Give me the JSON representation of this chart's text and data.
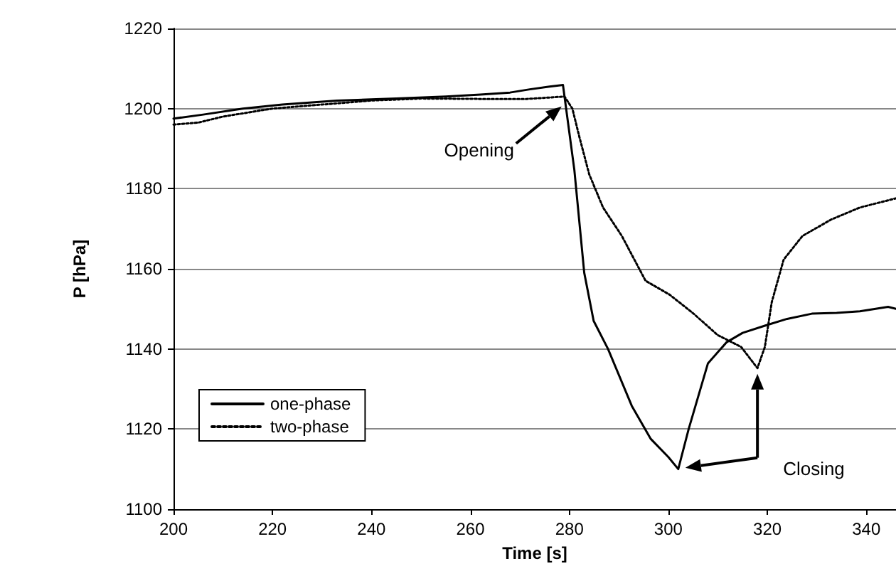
{
  "chart_data": {
    "type": "line",
    "xlabel": "Time [s]",
    "ylabel": "P [hPa]",
    "xlim": [
      200,
      346
    ],
    "xticks": [
      200,
      220,
      240,
      260,
      280,
      300,
      320,
      340
    ],
    "ylim": [
      1100,
      1220
    ],
    "yticks": [
      1100,
      1120,
      1140,
      1160,
      1180,
      1200,
      1220
    ],
    "grid": "y",
    "legend": "bottom left",
    "marker": "none",
    "series": [
      {
        "name": "one-phase",
        "color": "#000000",
        "line_style": "solid",
        "x": [
          200,
          206,
          214,
          222,
          233,
          245,
          255,
          262,
          268,
          272,
          276,
          278.7,
          281,
          283,
          284.9,
          287.8,
          292.6,
          296.4,
          300,
          302,
          304.1,
          308,
          311.8,
          315,
          319.5,
          324,
          329,
          334,
          338.7,
          344.4,
          346
        ],
        "values": [
          1197.5,
          1198.5,
          1200,
          1201,
          1202,
          1202.5,
          1203,
          1203.5,
          1204,
          1204.8,
          1205.5,
          1205.9,
          1184.7,
          1159,
          1147,
          1140,
          1125.8,
          1117.6,
          1113,
          1110,
          1120,
          1136.4,
          1141.7,
          1144,
          1145.8,
          1147.5,
          1148.8,
          1149,
          1149.4,
          1150.5,
          1150
        ]
      },
      {
        "name": "two-phase",
        "color": "#000000",
        "line_style": "dotted",
        "x": [
          200,
          205,
          210,
          215,
          220,
          230,
          240,
          250,
          261.9,
          271.4,
          279,
          280.6,
          282,
          284,
          286.8,
          290.6,
          295.4,
          300.3,
          305.1,
          309.9,
          314.7,
          318,
          319.5,
          320.9,
          323.3,
          327.1,
          332.9,
          338.7,
          346
        ],
        "values": [
          1196,
          1196.5,
          1198,
          1199,
          1200,
          1201,
          1202,
          1202.5,
          1202.4,
          1202.4,
          1203,
          1200,
          1193,
          1183.6,
          1175.3,
          1168.2,
          1157,
          1153.5,
          1148.8,
          1143.5,
          1140.5,
          1135.2,
          1140.5,
          1151.7,
          1162.3,
          1168.2,
          1172.3,
          1175.3,
          1177.6
        ]
      }
    ],
    "annotations": [
      "Opening",
      "Closing"
    ]
  }
}
